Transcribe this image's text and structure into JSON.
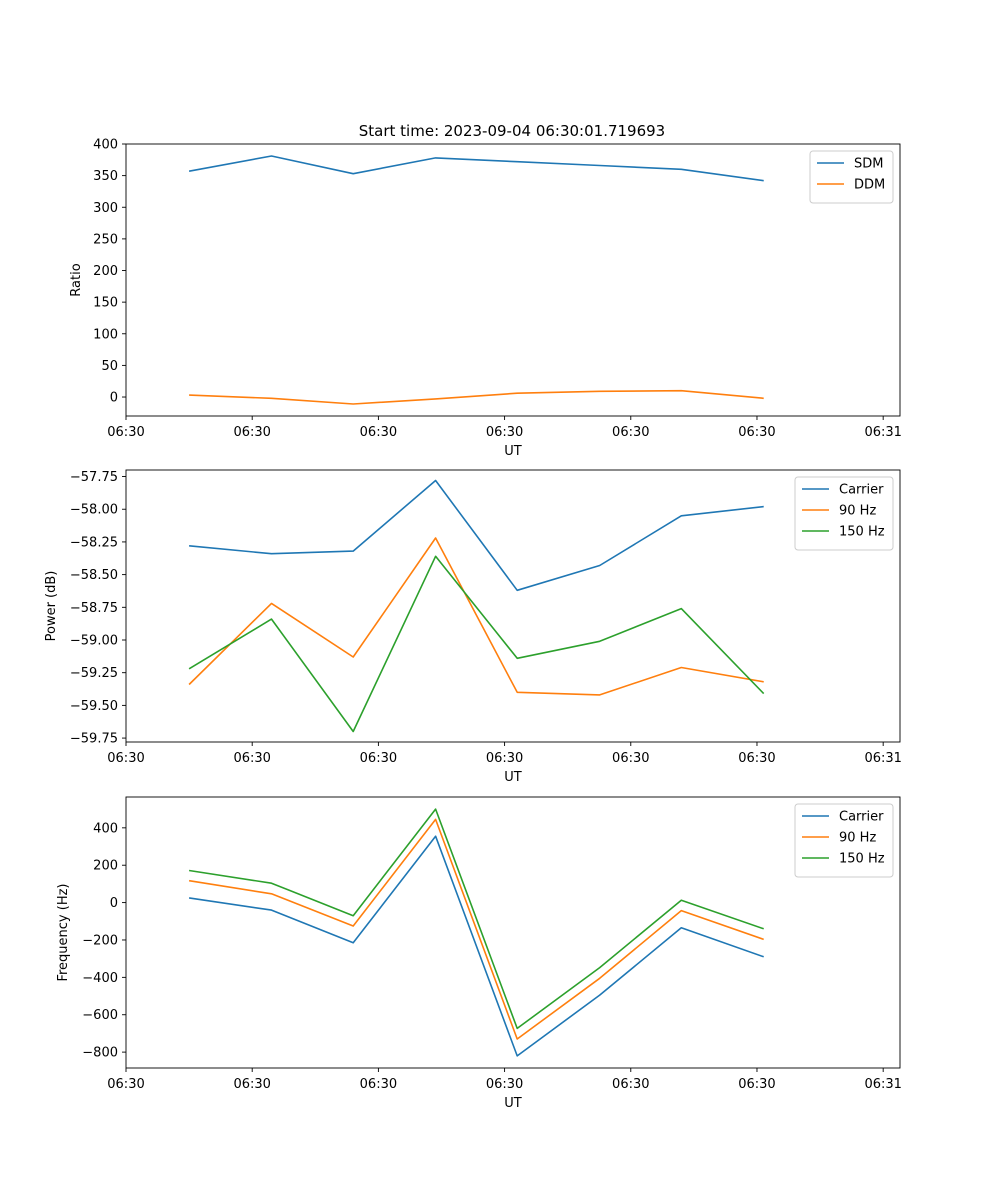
{
  "figure": {
    "title": "Start time: 2023-09-04 06:30:01.719693"
  },
  "chart_data": [
    {
      "type": "line",
      "id": "ratio-panel",
      "xlabel": "UT",
      "ylabel": "Ratio",
      "xlim": [
        0,
        9.2
      ],
      "ylim": [
        -30,
        400
      ],
      "x_ticks": [
        0,
        1.5,
        3,
        4.5,
        6,
        7.5,
        9
      ],
      "x_tick_labels": [
        "06:30",
        "06:30",
        "06:30",
        "06:30",
        "06:30",
        "06:30",
        "06:31"
      ],
      "y_ticks": [
        0,
        50,
        100,
        150,
        200,
        250,
        300,
        350,
        400
      ],
      "y_tick_labels": [
        "0",
        "50",
        "100",
        "150",
        "200",
        "250",
        "300",
        "350",
        "400"
      ],
      "legend_position": "top-right",
      "x": [
        0.75,
        1.73,
        2.7,
        3.68,
        4.65,
        5.63,
        6.6,
        7.58
      ],
      "series": [
        {
          "name": "SDM",
          "color": "#1f77b4",
          "values": [
            357,
            381,
            353,
            378,
            372,
            366,
            360,
            342
          ]
        },
        {
          "name": "DDM",
          "color": "#ff7f0e",
          "values": [
            3,
            -2,
            -11,
            -3,
            6,
            9,
            10,
            -2
          ]
        }
      ]
    },
    {
      "type": "line",
      "id": "power-panel",
      "xlabel": "UT",
      "ylabel": "Power (dB)",
      "xlim": [
        0,
        9.2
      ],
      "ylim": [
        -59.78,
        -57.7
      ],
      "x_ticks": [
        0,
        1.5,
        3,
        4.5,
        6,
        7.5,
        9
      ],
      "x_tick_labels": [
        "06:30",
        "06:30",
        "06:30",
        "06:30",
        "06:30",
        "06:30",
        "06:31"
      ],
      "y_ticks": [
        -59.75,
        -59.5,
        -59.25,
        -59.0,
        -58.75,
        -58.5,
        -58.25,
        -58.0,
        -57.75
      ],
      "y_tick_labels": [
        "−59.75",
        "−59.50",
        "−59.25",
        "−59.00",
        "−58.75",
        "−58.50",
        "−58.25",
        "−58.00",
        "−57.75"
      ],
      "legend_position": "top-right",
      "x": [
        0.75,
        1.73,
        2.7,
        3.68,
        4.65,
        5.63,
        6.6,
        7.58
      ],
      "series": [
        {
          "name": "Carrier",
          "color": "#1f77b4",
          "values": [
            -58.28,
            -58.34,
            -58.32,
            -57.78,
            -58.62,
            -58.43,
            -58.05,
            -57.98
          ]
        },
        {
          "name": "90 Hz",
          "color": "#ff7f0e",
          "values": [
            -59.34,
            -58.72,
            -59.13,
            -58.22,
            -59.4,
            -59.42,
            -59.21,
            -59.32
          ]
        },
        {
          "name": "150 Hz",
          "color": "#2ca02c",
          "values": [
            -59.22,
            -58.84,
            -59.7,
            -58.36,
            -59.14,
            -59.01,
            -58.76,
            -59.41
          ]
        }
      ]
    },
    {
      "type": "line",
      "id": "frequency-panel",
      "xlabel": "UT",
      "ylabel": "Frequency (Hz)",
      "xlim": [
        0,
        9.2
      ],
      "ylim": [
        -885,
        565
      ],
      "x_ticks": [
        0,
        1.5,
        3,
        4.5,
        6,
        7.5,
        9
      ],
      "x_tick_labels": [
        "06:30",
        "06:30",
        "06:30",
        "06:30",
        "06:30",
        "06:30",
        "06:31"
      ],
      "y_ticks": [
        -800,
        -600,
        -400,
        -200,
        0,
        200,
        400
      ],
      "y_tick_labels": [
        "−800",
        "−600",
        "−400",
        "−200",
        "0",
        "200",
        "400"
      ],
      "legend_position": "top-right",
      "x": [
        0.75,
        1.73,
        2.7,
        3.68,
        4.65,
        5.63,
        6.6,
        7.58
      ],
      "series": [
        {
          "name": "Carrier",
          "color": "#1f77b4",
          "values": [
            25,
            -40,
            -215,
            355,
            -820,
            -495,
            -135,
            -290
          ]
        },
        {
          "name": "90 Hz",
          "color": "#ff7f0e",
          "values": [
            117,
            47,
            -125,
            445,
            -730,
            -405,
            -43,
            -197
          ]
        },
        {
          "name": "150 Hz",
          "color": "#2ca02c",
          "values": [
            172,
            104,
            -70,
            500,
            -673,
            -348,
            13,
            -140
          ]
        }
      ]
    }
  ]
}
